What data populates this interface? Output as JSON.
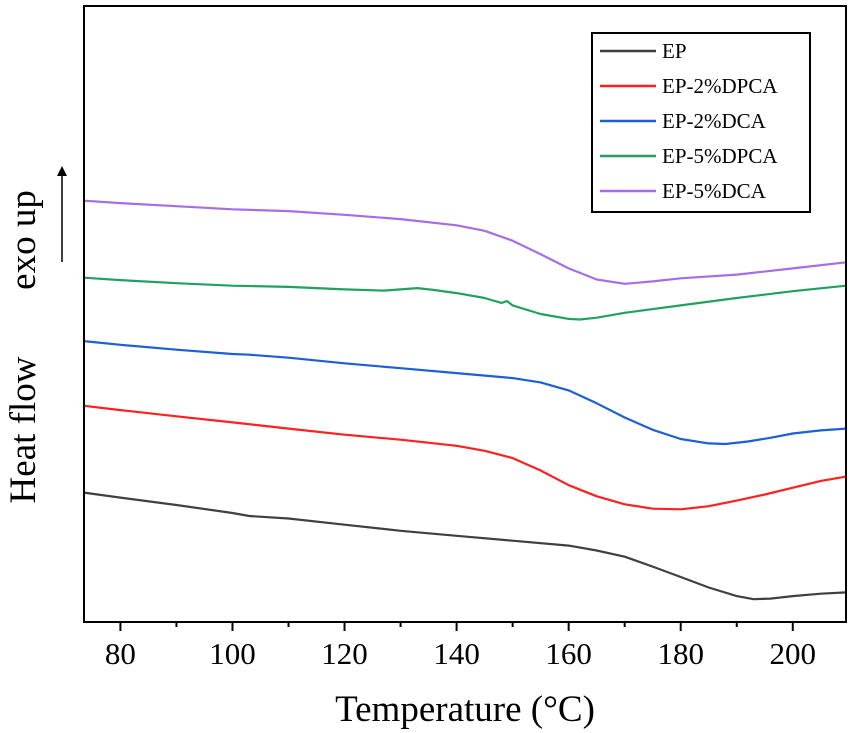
{
  "chart_data": {
    "type": "line",
    "xlabel": "Temperature (°C)",
    "ylabel": "Heat flow",
    "ylabel_note": "exo up",
    "xlim": [
      73.5,
      209.5
    ],
    "ylim": [
      0,
      100
    ],
    "x_ticks": [
      80,
      100,
      120,
      140,
      160,
      180,
      200
    ],
    "y_ticks_shown": false,
    "grid": false,
    "legend_position": "top-right",
    "series": [
      {
        "name": "EP",
        "color": "#404040",
        "points": [
          [
            73.5,
            79.0
          ],
          [
            80,
            79.8
          ],
          [
            90,
            81.0
          ],
          [
            100,
            82.3
          ],
          [
            103,
            82.8
          ],
          [
            110,
            83.2
          ],
          [
            120,
            84.2
          ],
          [
            130,
            85.2
          ],
          [
            140,
            86.0
          ],
          [
            150,
            86.8
          ],
          [
            160,
            87.6
          ],
          [
            165,
            88.4
          ],
          [
            170,
            89.4
          ],
          [
            175,
            91.0
          ],
          [
            180,
            92.7
          ],
          [
            185,
            94.4
          ],
          [
            190,
            95.8
          ],
          [
            193,
            96.3
          ],
          [
            196,
            96.2
          ],
          [
            200,
            95.8
          ],
          [
            205,
            95.4
          ],
          [
            209.5,
            95.2
          ]
        ]
      },
      {
        "name": "EP-2%DPCA",
        "color": "#ff2020",
        "points": [
          [
            73.5,
            64.9
          ],
          [
            80,
            65.6
          ],
          [
            90,
            66.6
          ],
          [
            100,
            67.6
          ],
          [
            110,
            68.6
          ],
          [
            120,
            69.6
          ],
          [
            130,
            70.4
          ],
          [
            140,
            71.4
          ],
          [
            145,
            72.2
          ],
          [
            150,
            73.4
          ],
          [
            155,
            75.4
          ],
          [
            160,
            77.8
          ],
          [
            165,
            79.6
          ],
          [
            170,
            80.9
          ],
          [
            175,
            81.6
          ],
          [
            180,
            81.7
          ],
          [
            185,
            81.2
          ],
          [
            190,
            80.3
          ],
          [
            195,
            79.3
          ],
          [
            200,
            78.2
          ],
          [
            205,
            77.1
          ],
          [
            209.5,
            76.4
          ]
        ]
      },
      {
        "name": "EP-2%DCA",
        "color": "#1c5fd6",
        "points": [
          [
            73.5,
            54.4
          ],
          [
            80,
            55.0
          ],
          [
            90,
            55.8
          ],
          [
            100,
            56.5
          ],
          [
            103,
            56.6
          ],
          [
            110,
            57.1
          ],
          [
            120,
            58.0
          ],
          [
            130,
            58.8
          ],
          [
            140,
            59.6
          ],
          [
            150,
            60.4
          ],
          [
            155,
            61.1
          ],
          [
            160,
            62.4
          ],
          [
            165,
            64.5
          ],
          [
            170,
            66.8
          ],
          [
            175,
            68.8
          ],
          [
            180,
            70.3
          ],
          [
            185,
            71.0
          ],
          [
            188,
            71.1
          ],
          [
            192,
            70.7
          ],
          [
            196,
            70.1
          ],
          [
            200,
            69.4
          ],
          [
            205,
            68.9
          ],
          [
            209.5,
            68.6
          ]
        ]
      },
      {
        "name": "EP-5%DPCA",
        "color": "#22a060",
        "points": [
          [
            73.5,
            44.1
          ],
          [
            80,
            44.5
          ],
          [
            90,
            45.0
          ],
          [
            100,
            45.4
          ],
          [
            110,
            45.6
          ],
          [
            120,
            46.0
          ],
          [
            127,
            46.2
          ],
          [
            130,
            46.0
          ],
          [
            133,
            45.8
          ],
          [
            136,
            46.1
          ],
          [
            140,
            46.6
          ],
          [
            145,
            47.4
          ],
          [
            148,
            48.2
          ],
          [
            149,
            47.9
          ],
          [
            150,
            48.6
          ],
          [
            155,
            50.0
          ],
          [
            160,
            50.8
          ],
          [
            162,
            50.9
          ],
          [
            165,
            50.6
          ],
          [
            170,
            49.8
          ],
          [
            180,
            48.6
          ],
          [
            190,
            47.4
          ],
          [
            200,
            46.3
          ],
          [
            209.5,
            45.4
          ]
        ]
      },
      {
        "name": "EP-5%DCA",
        "color": "#a46ee6",
        "points": [
          [
            73.5,
            31.6
          ],
          [
            80,
            32.0
          ],
          [
            90,
            32.5
          ],
          [
            100,
            33.0
          ],
          [
            110,
            33.3
          ],
          [
            120,
            33.9
          ],
          [
            130,
            34.6
          ],
          [
            140,
            35.6
          ],
          [
            145,
            36.5
          ],
          [
            150,
            38.1
          ],
          [
            155,
            40.3
          ],
          [
            160,
            42.6
          ],
          [
            165,
            44.4
          ],
          [
            170,
            45.1
          ],
          [
            175,
            44.7
          ],
          [
            180,
            44.2
          ],
          [
            190,
            43.6
          ],
          [
            200,
            42.6
          ],
          [
            209.5,
            41.6
          ]
        ]
      }
    ]
  }
}
